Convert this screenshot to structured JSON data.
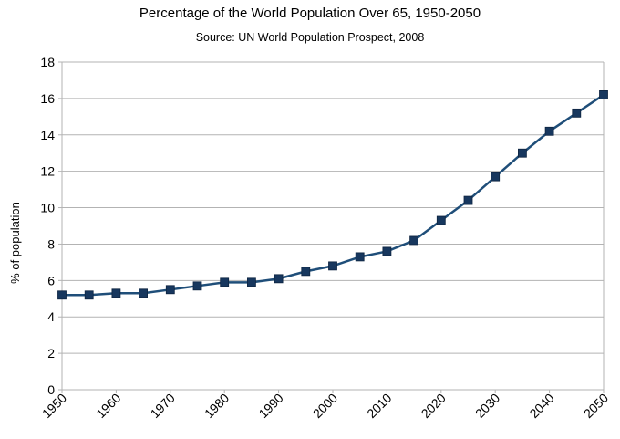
{
  "chart_data": {
    "type": "line",
    "title": "Percentage of the World Population Over 65, 1950-2050",
    "subtitle": "Source: UN World Population Prospect, 2008",
    "xlabel": "",
    "ylabel": "% of population",
    "ylim": [
      0,
      18
    ],
    "y_ticks": [
      "0",
      "2",
      "4",
      "6",
      "8",
      "10",
      "12",
      "14",
      "16",
      "18"
    ],
    "x_ticks": [
      "1950",
      "1960",
      "1970",
      "1980",
      "1990",
      "2000",
      "2010",
      "2020",
      "2030",
      "2040",
      "2050"
    ],
    "grid": "horizontal",
    "legend": "none",
    "line_color": "#1f4e79",
    "marker_color": "#17375e",
    "x": [
      1950,
      1955,
      1960,
      1965,
      1970,
      1975,
      1980,
      1985,
      1990,
      1995,
      2000,
      2005,
      2010,
      2015,
      2020,
      2025,
      2030,
      2035,
      2040,
      2045,
      2050
    ],
    "values": [
      5.2,
      5.2,
      5.3,
      5.3,
      5.5,
      5.7,
      5.9,
      5.9,
      6.1,
      6.5,
      6.8,
      7.3,
      7.6,
      8.2,
      9.3,
      10.4,
      11.7,
      13.0,
      14.2,
      15.2,
      16.2
    ]
  }
}
